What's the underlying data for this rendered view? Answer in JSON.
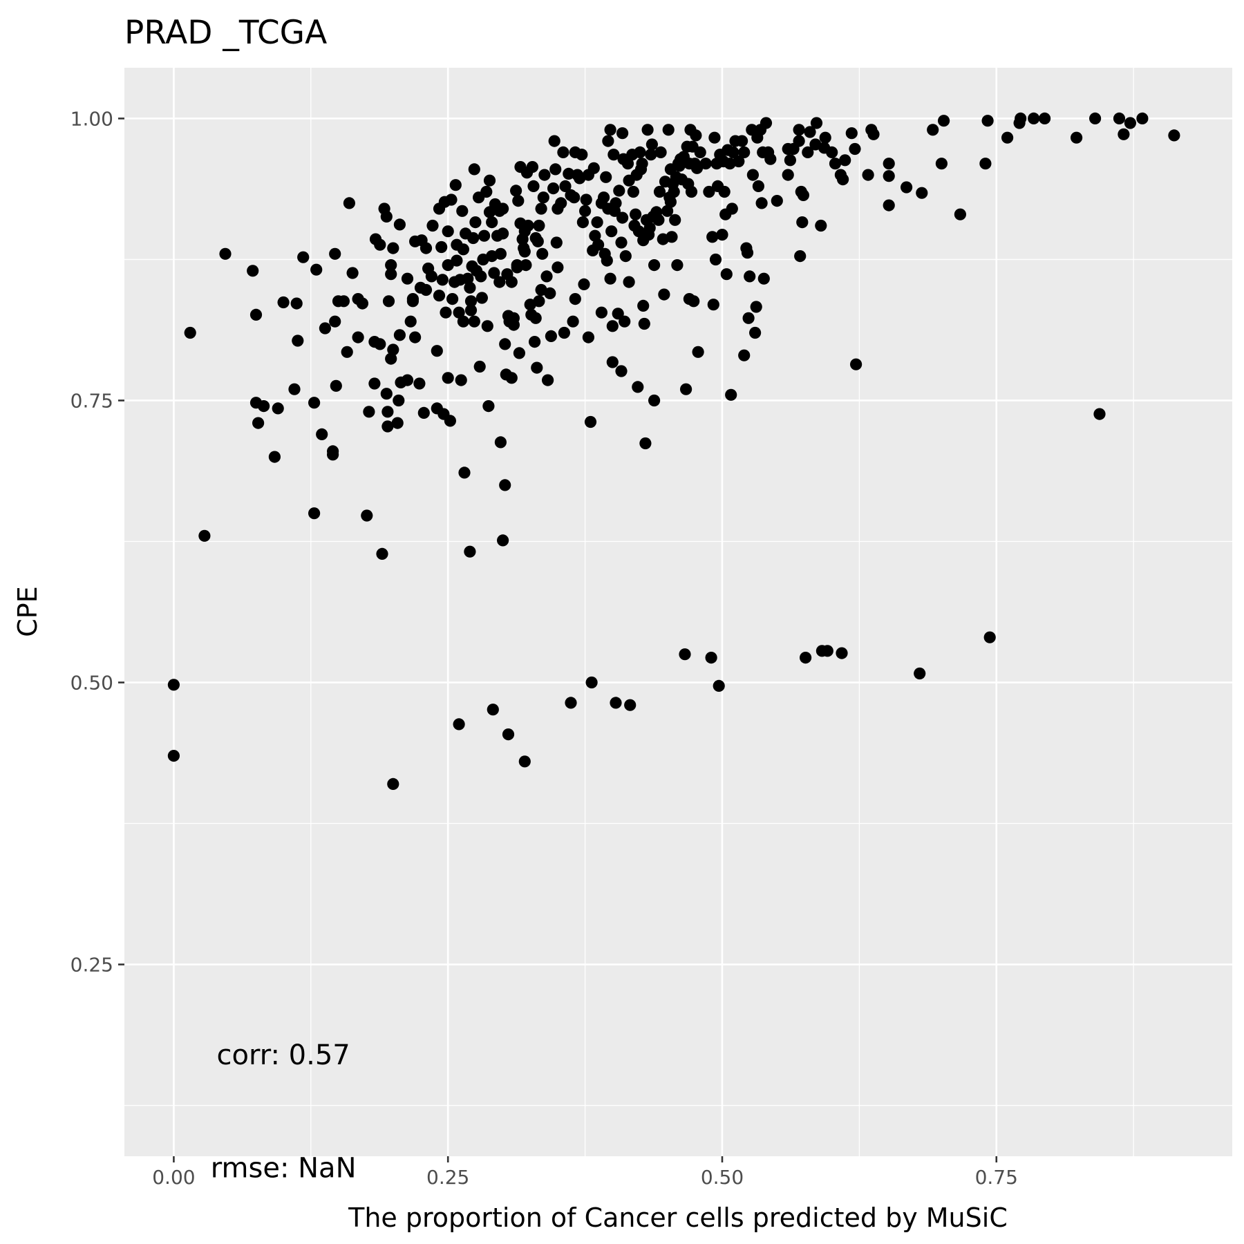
{
  "chart_data": {
    "type": "scatter",
    "title": "PRAD _TCGA",
    "xlabel": "The proportion of Cancer cells predicted by MuSiC",
    "ylabel": "CPE",
    "xlim": [
      -0.045,
      0.965
    ],
    "ylim": [
      0.08,
      1.045
    ],
    "x_ticks": [
      0.0,
      0.25,
      0.5,
      0.75
    ],
    "x_tick_labels": [
      "0.00",
      "0.25",
      "0.50",
      "0.75"
    ],
    "y_ticks": [
      0.25,
      0.5,
      0.75,
      1.0
    ],
    "y_tick_labels": [
      "0.25",
      "0.50",
      "0.75",
      "1.00"
    ],
    "grid": true,
    "legend": "none",
    "colors": {
      "panel": "#ebebeb",
      "grid": "#ffffff",
      "point": "#000000"
    },
    "annotations": [
      {
        "text": "corr: 0.57",
        "x": 0.1,
        "y": 0.17
      },
      {
        "text": "rmse: NaN",
        "x": 0.1,
        "y": 0.07
      }
    ],
    "points": [
      [
        0.0,
        0.498
      ],
      [
        0.0,
        0.435
      ],
      [
        0.015,
        0.81
      ],
      [
        0.028,
        0.63
      ],
      [
        0.047,
        0.88
      ],
      [
        0.072,
        0.865
      ],
      [
        0.075,
        0.826
      ],
      [
        0.075,
        0.748
      ],
      [
        0.077,
        0.73
      ],
      [
        0.082,
        0.745
      ],
      [
        0.092,
        0.7
      ],
      [
        0.095,
        0.743
      ],
      [
        0.1,
        0.837
      ],
      [
        0.11,
        0.76
      ],
      [
        0.112,
        0.836
      ],
      [
        0.113,
        0.803
      ],
      [
        0.118,
        0.877
      ],
      [
        0.128,
        0.748
      ],
      [
        0.128,
        0.65
      ],
      [
        0.13,
        0.866
      ],
      [
        0.135,
        0.72
      ],
      [
        0.138,
        0.814
      ],
      [
        0.145,
        0.705
      ],
      [
        0.145,
        0.702
      ],
      [
        0.147,
        0.82
      ],
      [
        0.147,
        0.88
      ],
      [
        0.148,
        0.763
      ],
      [
        0.15,
        0.838
      ],
      [
        0.155,
        0.838
      ],
      [
        0.158,
        0.793
      ],
      [
        0.16,
        0.925
      ],
      [
        0.163,
        0.863
      ],
      [
        0.168,
        0.84
      ],
      [
        0.168,
        0.806
      ],
      [
        0.172,
        0.836
      ],
      [
        0.176,
        0.648
      ],
      [
        0.178,
        0.74
      ],
      [
        0.183,
        0.802
      ],
      [
        0.183,
        0.765
      ],
      [
        0.184,
        0.893
      ],
      [
        0.188,
        0.8
      ],
      [
        0.188,
        0.888
      ],
      [
        0.19,
        0.614
      ],
      [
        0.192,
        0.92
      ],
      [
        0.194,
        0.913
      ],
      [
        0.194,
        0.756
      ],
      [
        0.195,
        0.74
      ],
      [
        0.195,
        0.727
      ],
      [
        0.196,
        0.838
      ],
      [
        0.198,
        0.87
      ],
      [
        0.198,
        0.787
      ],
      [
        0.198,
        0.862
      ],
      [
        0.2,
        0.795
      ],
      [
        0.2,
        0.885
      ],
      [
        0.204,
        0.73
      ],
      [
        0.205,
        0.75
      ],
      [
        0.206,
        0.906
      ],
      [
        0.206,
        0.808
      ],
      [
        0.207,
        0.766
      ],
      [
        0.2,
        0.41
      ],
      [
        0.213,
        0.768
      ],
      [
        0.213,
        0.858
      ],
      [
        0.216,
        0.82
      ],
      [
        0.218,
        0.84
      ],
      [
        0.218,
        0.838
      ],
      [
        0.22,
        0.891
      ],
      [
        0.22,
        0.806
      ],
      [
        0.224,
        0.765
      ],
      [
        0.225,
        0.85
      ],
      [
        0.226,
        0.892
      ],
      [
        0.228,
        0.739
      ],
      [
        0.23,
        0.848
      ],
      [
        0.23,
        0.885
      ],
      [
        0.232,
        0.867
      ],
      [
        0.235,
        0.86
      ],
      [
        0.236,
        0.905
      ],
      [
        0.24,
        0.743
      ],
      [
        0.24,
        0.794
      ],
      [
        0.242,
        0.92
      ],
      [
        0.242,
        0.843
      ],
      [
        0.244,
        0.886
      ],
      [
        0.245,
        0.857
      ],
      [
        0.246,
        0.738
      ],
      [
        0.247,
        0.926
      ],
      [
        0.248,
        0.828
      ],
      [
        0.25,
        0.87
      ],
      [
        0.25,
        0.9
      ],
      [
        0.25,
        0.77
      ],
      [
        0.252,
        0.732
      ],
      [
        0.253,
        0.928
      ],
      [
        0.254,
        0.84
      ],
      [
        0.256,
        0.855
      ],
      [
        0.257,
        0.941
      ],
      [
        0.258,
        0.874
      ],
      [
        0.258,
        0.888
      ],
      [
        0.26,
        0.828
      ],
      [
        0.26,
        0.463
      ],
      [
        0.261,
        0.857
      ],
      [
        0.262,
        0.768
      ],
      [
        0.263,
        0.918
      ],
      [
        0.264,
        0.884
      ],
      [
        0.264,
        0.82
      ],
      [
        0.265,
        0.686
      ],
      [
        0.266,
        0.898
      ],
      [
        0.268,
        0.858
      ],
      [
        0.27,
        0.616
      ],
      [
        0.27,
        0.85
      ],
      [
        0.271,
        0.838
      ],
      [
        0.271,
        0.83
      ],
      [
        0.272,
        0.869
      ],
      [
        0.273,
        0.894
      ],
      [
        0.274,
        0.955
      ],
      [
        0.274,
        0.82
      ],
      [
        0.275,
        0.908
      ],
      [
        0.276,
        0.865
      ],
      [
        0.278,
        0.93
      ],
      [
        0.279,
        0.78
      ],
      [
        0.28,
        0.86
      ],
      [
        0.281,
        0.841
      ],
      [
        0.282,
        0.875
      ],
      [
        0.283,
        0.896
      ],
      [
        0.285,
        0.935
      ],
      [
        0.286,
        0.816
      ],
      [
        0.287,
        0.745
      ],
      [
        0.288,
        0.917
      ],
      [
        0.288,
        0.945
      ],
      [
        0.29,
        0.908
      ],
      [
        0.29,
        0.878
      ],
      [
        0.291,
        0.476
      ],
      [
        0.292,
        0.863
      ],
      [
        0.293,
        0.924
      ],
      [
        0.295,
        0.896
      ],
      [
        0.297,
        0.918
      ],
      [
        0.297,
        0.855
      ],
      [
        0.298,
        0.713
      ],
      [
        0.298,
        0.88
      ],
      [
        0.3,
        0.626
      ],
      [
        0.3,
        0.898
      ],
      [
        0.3,
        0.92
      ],
      [
        0.302,
        0.8
      ],
      [
        0.302,
        0.675
      ],
      [
        0.303,
        0.773
      ],
      [
        0.304,
        0.862
      ],
      [
        0.305,
        0.454
      ],
      [
        0.305,
        0.825
      ],
      [
        0.306,
        0.82
      ],
      [
        0.308,
        0.77
      ],
      [
        0.308,
        0.855
      ],
      [
        0.31,
        0.823
      ],
      [
        0.31,
        0.817
      ],
      [
        0.312,
        0.936
      ],
      [
        0.313,
        0.87
      ],
      [
        0.313,
        0.868
      ],
      [
        0.314,
        0.927
      ],
      [
        0.315,
        0.792
      ],
      [
        0.316,
        0.957
      ],
      [
        0.316,
        0.907
      ],
      [
        0.318,
        0.893
      ],
      [
        0.319,
        0.885
      ],
      [
        0.32,
        0.43
      ],
      [
        0.32,
        0.9
      ],
      [
        0.32,
        0.882
      ],
      [
        0.321,
        0.87
      ],
      [
        0.322,
        0.952
      ],
      [
        0.323,
        0.905
      ],
      [
        0.325,
        0.835
      ],
      [
        0.326,
        0.826
      ],
      [
        0.327,
        0.957
      ],
      [
        0.328,
        0.94
      ],
      [
        0.329,
        0.802
      ],
      [
        0.33,
        0.894
      ],
      [
        0.33,
        0.823
      ],
      [
        0.331,
        0.779
      ],
      [
        0.332,
        0.891
      ],
      [
        0.333,
        0.838
      ],
      [
        0.333,
        0.905
      ],
      [
        0.335,
        0.92
      ],
      [
        0.335,
        0.848
      ],
      [
        0.336,
        0.88
      ],
      [
        0.337,
        0.93
      ],
      [
        0.338,
        0.95
      ],
      [
        0.34,
        0.86
      ],
      [
        0.341,
        0.768
      ],
      [
        0.343,
        0.845
      ],
      [
        0.344,
        0.807
      ],
      [
        0.346,
        0.938
      ],
      [
        0.347,
        0.98
      ],
      [
        0.348,
        0.955
      ],
      [
        0.349,
        0.89
      ],
      [
        0.35,
        0.868
      ],
      [
        0.35,
        0.92
      ],
      [
        0.353,
        0.925
      ],
      [
        0.355,
        0.97
      ],
      [
        0.356,
        0.81
      ],
      [
        0.357,
        0.94
      ],
      [
        0.36,
        0.951
      ],
      [
        0.362,
        0.932
      ],
      [
        0.362,
        0.482
      ],
      [
        0.364,
        0.82
      ],
      [
        0.365,
        0.93
      ],
      [
        0.366,
        0.97
      ],
      [
        0.366,
        0.84
      ],
      [
        0.368,
        0.95
      ],
      [
        0.37,
        0.947
      ],
      [
        0.372,
        0.968
      ],
      [
        0.373,
        0.908
      ],
      [
        0.374,
        0.853
      ],
      [
        0.375,
        0.918
      ],
      [
        0.376,
        0.928
      ],
      [
        0.378,
        0.95
      ],
      [
        0.378,
        0.806
      ],
      [
        0.38,
        0.731
      ],
      [
        0.381,
        0.5
      ],
      [
        0.382,
        0.883
      ],
      [
        0.383,
        0.956
      ],
      [
        0.384,
        0.896
      ],
      [
        0.386,
        0.908
      ],
      [
        0.387,
        0.888
      ],
      [
        0.39,
        0.925
      ],
      [
        0.39,
        0.828
      ],
      [
        0.392,
        0.93
      ],
      [
        0.393,
        0.88
      ],
      [
        0.394,
        0.948
      ],
      [
        0.395,
        0.874
      ],
      [
        0.396,
        0.92
      ],
      [
        0.396,
        0.98
      ],
      [
        0.398,
        0.99
      ],
      [
        0.398,
        0.858
      ],
      [
        0.399,
        0.9
      ],
      [
        0.4,
        0.784
      ],
      [
        0.4,
        0.816
      ],
      [
        0.401,
        0.968
      ],
      [
        0.402,
        0.918
      ],
      [
        0.403,
        0.925
      ],
      [
        0.403,
        0.482
      ],
      [
        0.405,
        0.827
      ],
      [
        0.406,
        0.936
      ],
      [
        0.408,
        0.89
      ],
      [
        0.408,
        0.776
      ],
      [
        0.409,
        0.912
      ],
      [
        0.409,
        0.987
      ],
      [
        0.41,
        0.964
      ],
      [
        0.411,
        0.82
      ],
      [
        0.412,
        0.878
      ],
      [
        0.414,
        0.96
      ],
      [
        0.415,
        0.855
      ],
      [
        0.415,
        0.945
      ],
      [
        0.416,
        0.48
      ],
      [
        0.418,
        0.968
      ],
      [
        0.419,
        0.935
      ],
      [
        0.42,
        0.905
      ],
      [
        0.421,
        0.915
      ],
      [
        0.422,
        0.95
      ],
      [
        0.423,
        0.762
      ],
      [
        0.424,
        0.9
      ],
      [
        0.425,
        0.97
      ],
      [
        0.426,
        0.955
      ],
      [
        0.427,
        0.96
      ],
      [
        0.428,
        0.892
      ],
      [
        0.428,
        0.834
      ],
      [
        0.429,
        0.818
      ],
      [
        0.43,
        0.712
      ],
      [
        0.431,
        0.91
      ],
      [
        0.432,
        0.99
      ],
      [
        0.433,
        0.897
      ],
      [
        0.434,
        0.903
      ],
      [
        0.435,
        0.968
      ],
      [
        0.436,
        0.977
      ],
      [
        0.437,
        0.913
      ],
      [
        0.438,
        0.87
      ],
      [
        0.438,
        0.75
      ],
      [
        0.44,
        0.917
      ],
      [
        0.442,
        0.91
      ],
      [
        0.443,
        0.935
      ],
      [
        0.444,
        0.97
      ],
      [
        0.446,
        0.893
      ],
      [
        0.447,
        0.844
      ],
      [
        0.448,
        0.944
      ],
      [
        0.45,
        0.918
      ],
      [
        0.451,
        0.99
      ],
      [
        0.452,
        0.93
      ],
      [
        0.453,
        0.955
      ],
      [
        0.453,
        0.926
      ],
      [
        0.454,
        0.895
      ],
      [
        0.455,
        0.942
      ],
      [
        0.456,
        0.935
      ],
      [
        0.457,
        0.91
      ],
      [
        0.458,
        0.948
      ],
      [
        0.459,
        0.87
      ],
      [
        0.46,
        0.96
      ],
      [
        0.461,
        0.958
      ],
      [
        0.462,
        0.964
      ],
      [
        0.463,
        0.946
      ],
      [
        0.465,
        0.966
      ],
      [
        0.466,
        0.525
      ],
      [
        0.467,
        0.76
      ],
      [
        0.468,
        0.975
      ],
      [
        0.469,
        0.942
      ],
      [
        0.47,
        0.96
      ],
      [
        0.47,
        0.84
      ],
      [
        0.471,
        0.99
      ],
      [
        0.472,
        0.935
      ],
      [
        0.473,
        0.975
      ],
      [
        0.474,
        0.838
      ],
      [
        0.475,
        0.96
      ],
      [
        0.476,
        0.985
      ],
      [
        0.477,
        0.956
      ],
      [
        0.478,
        0.793
      ],
      [
        0.48,
        0.97
      ],
      [
        0.485,
        0.96
      ],
      [
        0.488,
        0.935
      ],
      [
        0.49,
        0.522
      ],
      [
        0.491,
        0.895
      ],
      [
        0.492,
        0.835
      ],
      [
        0.493,
        0.983
      ],
      [
        0.494,
        0.875
      ],
      [
        0.495,
        0.96
      ],
      [
        0.496,
        0.94
      ],
      [
        0.497,
        0.497
      ],
      [
        0.498,
        0.968
      ],
      [
        0.5,
        0.897
      ],
      [
        0.501,
        0.962
      ],
      [
        0.502,
        0.935
      ],
      [
        0.503,
        0.915
      ],
      [
        0.504,
        0.862
      ],
      [
        0.505,
        0.972
      ],
      [
        0.507,
        0.96
      ],
      [
        0.508,
        0.755
      ],
      [
        0.509,
        0.92
      ],
      [
        0.51,
        0.97
      ],
      [
        0.512,
        0.98
      ],
      [
        0.515,
        0.962
      ],
      [
        0.518,
        0.98
      ],
      [
        0.52,
        0.79
      ],
      [
        0.52,
        0.97
      ],
      [
        0.522,
        0.885
      ],
      [
        0.523,
        0.881
      ],
      [
        0.524,
        0.823
      ],
      [
        0.525,
        0.86
      ],
      [
        0.527,
        0.99
      ],
      [
        0.528,
        0.95
      ],
      [
        0.53,
        0.81
      ],
      [
        0.531,
        0.833
      ],
      [
        0.532,
        0.983
      ],
      [
        0.533,
        0.94
      ],
      [
        0.535,
        0.99
      ],
      [
        0.536,
        0.925
      ],
      [
        0.537,
        0.97
      ],
      [
        0.538,
        0.858
      ],
      [
        0.54,
        0.996
      ],
      [
        0.542,
        0.97
      ],
      [
        0.544,
        0.964
      ],
      [
        0.55,
        0.927
      ],
      [
        0.56,
        0.973
      ],
      [
        0.56,
        0.95
      ],
      [
        0.562,
        0.963
      ],
      [
        0.565,
        0.973
      ],
      [
        0.57,
        0.99
      ],
      [
        0.57,
        0.98
      ],
      [
        0.571,
        0.878
      ],
      [
        0.572,
        0.935
      ],
      [
        0.573,
        0.908
      ],
      [
        0.574,
        0.932
      ],
      [
        0.576,
        0.522
      ],
      [
        0.578,
        0.97
      ],
      [
        0.58,
        0.988
      ],
      [
        0.585,
        0.977
      ],
      [
        0.586,
        0.996
      ],
      [
        0.59,
        0.905
      ],
      [
        0.591,
        0.528
      ],
      [
        0.593,
        0.974
      ],
      [
        0.594,
        0.983
      ],
      [
        0.596,
        0.528
      ],
      [
        0.6,
        0.97
      ],
      [
        0.603,
        0.96
      ],
      [
        0.608,
        0.95
      ],
      [
        0.609,
        0.526
      ],
      [
        0.61,
        0.946
      ],
      [
        0.612,
        0.963
      ],
      [
        0.618,
        0.987
      ],
      [
        0.621,
        0.973
      ],
      [
        0.622,
        0.782
      ],
      [
        0.633,
        0.95
      ],
      [
        0.636,
        0.99
      ],
      [
        0.638,
        0.986
      ],
      [
        0.652,
        0.96
      ],
      [
        0.652,
        0.923
      ],
      [
        0.652,
        0.949
      ],
      [
        0.668,
        0.939
      ],
      [
        0.68,
        0.508
      ],
      [
        0.682,
        0.934
      ],
      [
        0.692,
        0.99
      ],
      [
        0.7,
        0.96
      ],
      [
        0.702,
        0.998
      ],
      [
        0.717,
        0.915
      ],
      [
        0.74,
        0.96
      ],
      [
        0.742,
        0.998
      ],
      [
        0.744,
        0.54
      ],
      [
        0.76,
        0.983
      ],
      [
        0.771,
        0.996
      ],
      [
        0.772,
        1.0
      ],
      [
        0.784,
        1.0
      ],
      [
        0.794,
        1.0
      ],
      [
        0.823,
        0.983
      ],
      [
        0.84,
        1.0
      ],
      [
        0.844,
        0.738
      ],
      [
        0.862,
        1.0
      ],
      [
        0.866,
        0.986
      ],
      [
        0.872,
        0.996
      ],
      [
        0.883,
        1.0
      ],
      [
        0.912,
        0.985
      ]
    ]
  }
}
